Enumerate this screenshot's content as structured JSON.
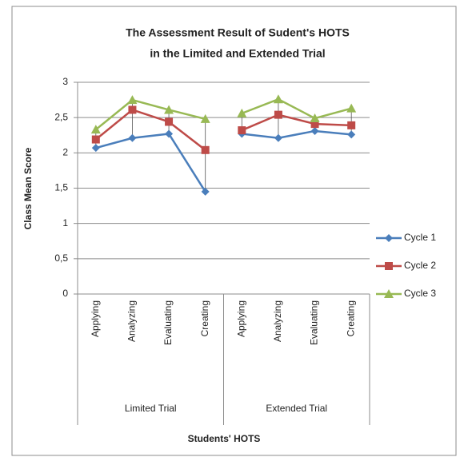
{
  "chart_data": {
    "type": "line",
    "title": [
      "The Assessment Result of Sudent's HOTS",
      "in the Limited and Extended Trial"
    ],
    "x_label": "Students' HOTS",
    "y_label": "Class Mean Score",
    "categories": [
      "Applying",
      "Analyzing",
      "Evaluating",
      "Creating",
      "Applying",
      "Analyzing",
      "Evaluating",
      "Creating"
    ],
    "groups": [
      {
        "label": "Limited Trial",
        "size": 4
      },
      {
        "label": "Extended Trial",
        "size": 4
      }
    ],
    "series": [
      {
        "name": "Cycle 1",
        "color": "#4a7ebb",
        "marker": "diamond",
        "values": [
          2.07,
          2.21,
          2.27,
          1.45,
          2.27,
          2.21,
          2.31,
          2.26
        ]
      },
      {
        "name": "Cycle 2",
        "color": "#be4b48",
        "marker": "square",
        "values": [
          2.19,
          2.61,
          2.44,
          2.04,
          2.32,
          2.54,
          2.41,
          2.39
        ]
      },
      {
        "name": "Cycle 3",
        "color": "#98b954",
        "marker": "triangle",
        "values": [
          2.33,
          2.75,
          2.61,
          2.48,
          2.56,
          2.76,
          2.49,
          2.63
        ]
      }
    ],
    "ylim": [
      0,
      3
    ],
    "yticks": [
      0,
      {
        "value": 0.5,
        "label": "0,5"
      },
      1,
      {
        "value": 1.5,
        "label": "1,5"
      },
      2,
      {
        "value": 2.5,
        "label": "2,5"
      },
      3
    ],
    "grid": true,
    "drop_lines": true,
    "legend": "right"
  }
}
